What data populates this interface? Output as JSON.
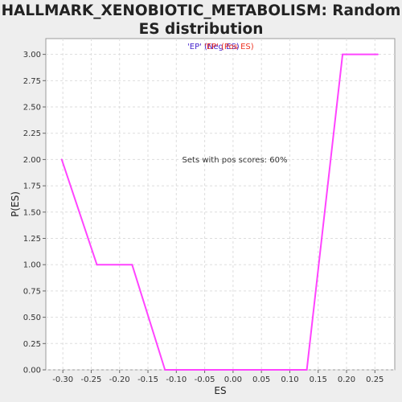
{
  "chart_data": {
    "type": "line",
    "title": "HALLMARK_XENOBIOTIC_METABOLISM: Random ES distribution",
    "xlabel": "ES",
    "ylabel": "P(ES)",
    "xlim": [
      -0.33,
      0.285
    ],
    "ylim": [
      0,
      3.15
    ],
    "x_ticks": [
      -0.3,
      -0.25,
      -0.2,
      -0.15,
      -0.1,
      -0.05,
      0.0,
      0.05,
      0.1,
      0.15,
      0.2,
      0.25
    ],
    "x_tick_labels": [
      "-0.30",
      "-0.25",
      "-0.20",
      "-0.15",
      "-0.10",
      "-0.05",
      "0.00",
      "0.05",
      "0.10",
      "0.15",
      "0.20",
      "0.25"
    ],
    "y_ticks": [
      0,
      0.25,
      0.5,
      0.75,
      1.0,
      1.25,
      1.5,
      1.75,
      2.0,
      2.25,
      2.5,
      2.75,
      3.0
    ],
    "y_tick_labels": [
      "0.00",
      "0.25",
      "0.50",
      "0.75",
      "1.00",
      "1.25",
      "1.50",
      "1.75",
      "2.00",
      "2.25",
      "2.50",
      "2.75",
      "3.00"
    ],
    "grid": true,
    "series": [
      {
        "color": "#ff44ff",
        "x": [
          -0.302,
          -0.24,
          -0.178,
          -0.12,
          0.13,
          0.193,
          0.255
        ],
        "y": [
          2.0,
          1.0,
          1.0,
          0.0,
          0.0,
          3.0,
          3.0
        ]
      }
    ],
    "legend": {
      "placement": "top-center",
      "entries": [
        {
          "label": "'EP' (Neg ES)",
          "color": "#4422cc"
        },
        {
          "label": "'EP' (Pos ES)",
          "color": "#ee3322"
        }
      ]
    },
    "annotation": "Sets with pos scores: 60%"
  }
}
